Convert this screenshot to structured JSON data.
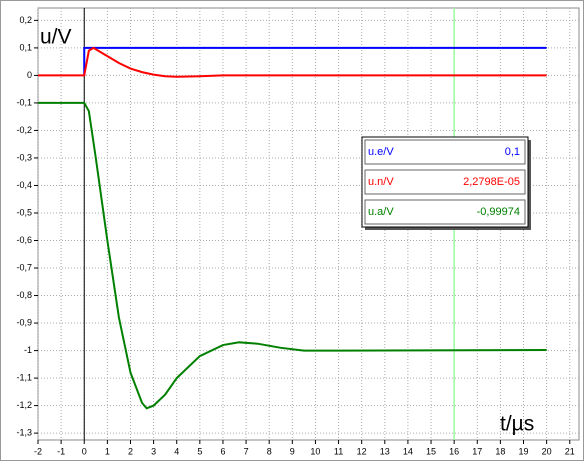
{
  "chart_data": {
    "type": "line",
    "y_label": "u/V",
    "x_label": "t/µs",
    "xlim": [
      -2,
      21.4
    ],
    "ylim": [
      -1.325,
      0.245
    ],
    "xticks": [
      -2,
      -1,
      0,
      1,
      2,
      3,
      4,
      5,
      6,
      7,
      8,
      9,
      10,
      11,
      12,
      13,
      14,
      15,
      16,
      17,
      18,
      19,
      20,
      21
    ],
    "yticks": [
      {
        "value": 0.2,
        "label": "0,2"
      },
      {
        "value": 0.1,
        "label": "0,1"
      },
      0,
      {
        "value": -0.1,
        "label": "-0,1"
      },
      {
        "value": -0.2,
        "label": "-0,2"
      },
      {
        "value": -0.3,
        "label": "-0,3"
      },
      {
        "value": -0.4,
        "label": "-0,4"
      },
      {
        "value": -0.5,
        "label": "-0,5"
      },
      {
        "value": -0.6,
        "label": "-0,6"
      },
      {
        "value": -0.7,
        "label": "-0,7"
      },
      {
        "value": -0.8,
        "label": "-0,8"
      },
      {
        "value": -0.9,
        "label": "-0,9"
      },
      -1,
      {
        "value": -1.1,
        "label": "-1,1"
      },
      {
        "value": -1.2,
        "label": "-1,2"
      },
      {
        "value": -1.3,
        "label": "-1,3"
      }
    ],
    "grid": true,
    "cursor_x": 16,
    "series": [
      {
        "name": "u.e/V",
        "color": "#0000ff",
        "x": [
          0,
          0,
          20
        ],
        "values": [
          0,
          0.1,
          0.1
        ],
        "readout": {
          "value": 0.1,
          "label": "0,1"
        }
      },
      {
        "name": "u.n/V",
        "color": "#ff0000",
        "x": [
          -2,
          0,
          0.2,
          0.4,
          0.7,
          1,
          1.5,
          2,
          2.5,
          3,
          3.5,
          4,
          5,
          6,
          20
        ],
        "values": [
          0,
          0,
          0.09,
          0.1,
          0.085,
          0.07,
          0.045,
          0.025,
          0.012,
          0.003,
          -0.003,
          -0.005,
          -0.003,
          0,
          0
        ],
        "readout": {
          "value": 2.2798e-05,
          "label": "2,2798E-05"
        }
      },
      {
        "name": "u.a/V",
        "color": "#008000",
        "x": [
          -2,
          0,
          0.2,
          0.5,
          1,
          1.5,
          2,
          2.5,
          2.7,
          3,
          3.5,
          4,
          5,
          6,
          6.7,
          7.5,
          8.5,
          9.5,
          11,
          20
        ],
        "values": [
          -0.1,
          -0.1,
          -0.13,
          -0.3,
          -0.6,
          -0.88,
          -1.08,
          -1.19,
          -1.21,
          -1.2,
          -1.16,
          -1.1,
          -1.02,
          -0.98,
          -0.97,
          -0.975,
          -0.99,
          -1.0,
          -1.0,
          -0.998
        ],
        "readout": {
          "value": -0.99974,
          "label": "-0,99974"
        }
      }
    ]
  }
}
